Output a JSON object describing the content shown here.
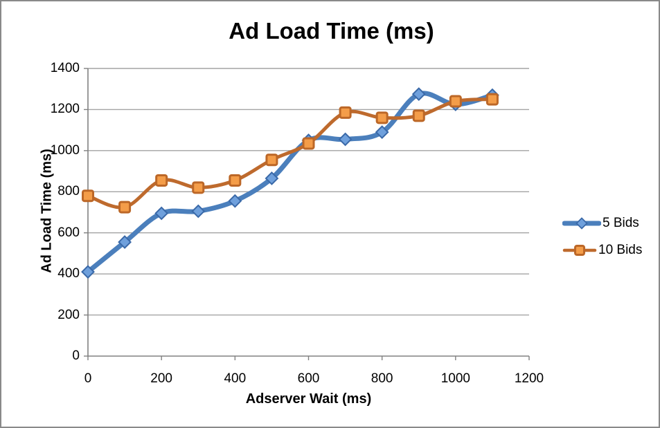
{
  "chart_data": {
    "type": "line",
    "title": "Ad Load Time (ms)",
    "xlabel": "Adserver Wait (ms)",
    "ylabel": "Ad Load Time (ms)",
    "x": [
      0,
      100,
      200,
      300,
      400,
      500,
      600,
      700,
      800,
      900,
      1000,
      1100
    ],
    "series": [
      {
        "name": "5 Bids",
        "marker": "diamond",
        "line_color": "#4b7fbc",
        "marker_fill": "#6fa0dc",
        "marker_stroke": "#3a69a8",
        "values": [
          410,
          555,
          695,
          705,
          755,
          865,
          1050,
          1055,
          1090,
          1275,
          1225,
          1270
        ]
      },
      {
        "name": "10 Bids",
        "marker": "square",
        "line_color": "#be6a2d",
        "marker_fill": "#f49d49",
        "marker_stroke": "#bc6727",
        "values": [
          780,
          725,
          855,
          820,
          855,
          955,
          1035,
          1185,
          1160,
          1170,
          1240,
          1250
        ]
      }
    ],
    "xlim": [
      0,
      1200
    ],
    "ylim": [
      0,
      1400
    ],
    "x_ticks": [
      0,
      200,
      400,
      600,
      800,
      1000,
      1200
    ],
    "y_ticks": [
      0,
      200,
      400,
      600,
      800,
      1000,
      1200,
      1400
    ],
    "grid": true,
    "smooth": true,
    "legend_position": "right",
    "gridline_color": "#a3a3a3",
    "axis_color": "#808080",
    "frame_border_color": "#898989"
  }
}
